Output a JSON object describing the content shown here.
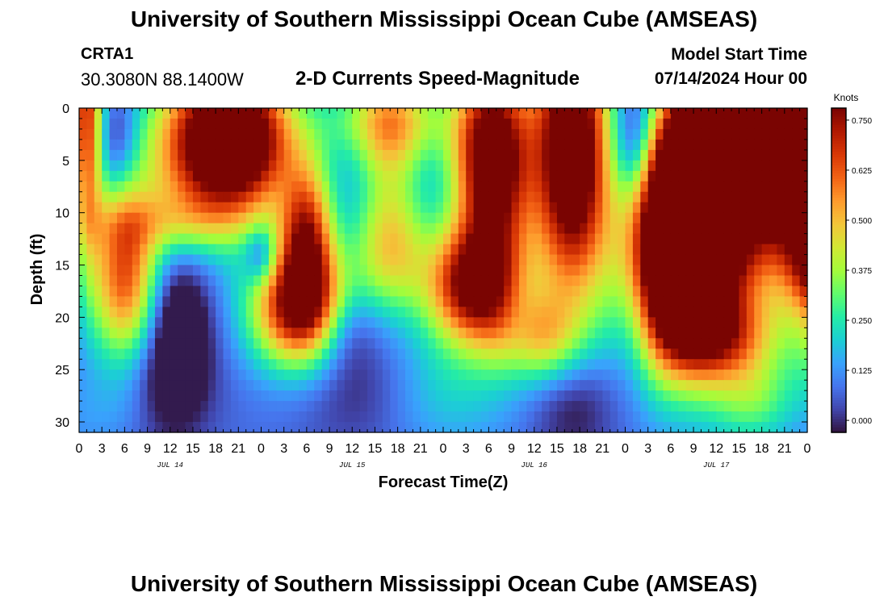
{
  "header": {
    "title": "University of Southern Mississippi Ocean Cube (AMSEAS)",
    "station": "CRTA1",
    "coords": "30.3080N  88.1400W",
    "subtitle": "2-D Currents Speed-Magnitude",
    "model_start_label": "Model Start Time",
    "model_start_value": "07/14/2024 Hour 00"
  },
  "footer": {
    "title": "University of Southern Mississippi Ocean Cube (AMSEAS)"
  },
  "colors": {
    "colormap": [
      "#30123b",
      "#4145ab",
      "#4675ed",
      "#39a2fc",
      "#1bcfd4",
      "#24eca6",
      "#61fc6c",
      "#a4fc3b",
      "#d1e834",
      "#f3c63a",
      "#fe9b2d",
      "#f36315",
      "#d93806",
      "#b11901",
      "#7a0402"
    ]
  },
  "chart_data": {
    "type": "heatmap",
    "title": "2-D Currents Speed-Magnitude",
    "xlabel": "Forecast Time(Z)",
    "ylabel": "Depth (ft)",
    "x_unit": "forecast hour",
    "xlim": [
      0,
      96
    ],
    "ylim": [
      31,
      0
    ],
    "x_ticks": [
      0,
      3,
      6,
      9,
      12,
      15,
      18,
      21,
      24,
      27,
      30,
      33,
      36,
      39,
      42,
      45,
      48,
      51,
      54,
      57,
      60,
      63,
      66,
      69,
      72,
      75,
      78,
      81,
      84,
      87,
      90,
      93,
      96
    ],
    "x_tick_labels": [
      "0",
      "3",
      "6",
      "9",
      "12",
      "15",
      "18",
      "21",
      "0",
      "3",
      "6",
      "9",
      "12",
      "15",
      "18",
      "21",
      "0",
      "3",
      "6",
      "9",
      "12",
      "15",
      "18",
      "21",
      "0",
      "3",
      "6",
      "9",
      "12",
      "15",
      "18",
      "21",
      "0"
    ],
    "day_labels": [
      {
        "hour": 12,
        "label": "JUL 14"
      },
      {
        "hour": 36,
        "label": "JUL 15"
      },
      {
        "hour": 60,
        "label": "JUL 16"
      },
      {
        "hour": 84,
        "label": "JUL 17"
      }
    ],
    "y_ticks": [
      0,
      5,
      10,
      15,
      20,
      25,
      30
    ],
    "y_tick_labels": [
      "0",
      "5",
      "10",
      "15",
      "20",
      "25",
      "30"
    ],
    "colorbar": {
      "unit": "Knots",
      "range": [
        -0.03,
        0.78
      ],
      "ticks": [
        0.0,
        0.125,
        0.25,
        0.375,
        0.5,
        0.625,
        0.75
      ],
      "tick_labels": [
        "0.000",
        "0.125",
        "0.250",
        "0.375",
        "0.500",
        "0.625",
        "0.750"
      ]
    },
    "grid": false,
    "baseline": 0.08,
    "features": [
      {
        "t": 1,
        "d": 0,
        "a": 0.6,
        "st": 1.5,
        "sd": 9
      },
      {
        "t": 21,
        "d": 3,
        "a": 0.9,
        "st": 5,
        "sd": 5
      },
      {
        "t": 14,
        "d": 4,
        "a": 0.35,
        "st": 5,
        "sd": 6
      },
      {
        "t": 6,
        "d": 16,
        "a": 0.55,
        "st": 3.2,
        "sd": 6
      },
      {
        "t": 29,
        "d": 19,
        "a": 0.7,
        "st": 4.5,
        "sd": 4
      },
      {
        "t": 30,
        "d": 12,
        "a": 0.55,
        "st": 2.5,
        "sd": 5
      },
      {
        "t": 41,
        "d": 5,
        "a": 0.25,
        "st": 3,
        "sd": 6
      },
      {
        "t": 52,
        "d": 5,
        "a": 0.15,
        "st": 3,
        "sd": 6
      },
      {
        "t": 41,
        "d": 1,
        "a": 0.3,
        "st": 6,
        "sd": 3
      },
      {
        "t": 12,
        "d": 11,
        "a": 0.15,
        "st": 8,
        "sd": 2
      },
      {
        "t": 41,
        "d": 14,
        "a": 0.3,
        "st": 3.5,
        "sd": 4
      },
      {
        "t": 55,
        "d": 5,
        "a": 0.75,
        "st": 3.5,
        "sd": 7
      },
      {
        "t": 52,
        "d": 17,
        "a": 0.7,
        "st": 4.5,
        "sd": 4
      },
      {
        "t": 65,
        "d": 4,
        "a": 0.9,
        "st": 3.5,
        "sd": 10
      },
      {
        "t": 60,
        "d": 22,
        "a": 0.35,
        "st": 4,
        "sd": 3
      },
      {
        "t": 79,
        "d": 8,
        "a": 0.6,
        "st": 2.5,
        "sd": 6
      },
      {
        "t": 87,
        "d": 4,
        "a": 0.95,
        "st": 6,
        "sd": 9
      },
      {
        "t": 79,
        "d": 15,
        "a": 1.0,
        "st": 5,
        "sd": 7
      },
      {
        "t": 85,
        "d": 22,
        "a": 0.35,
        "st": 5,
        "sd": 3
      },
      {
        "t": 96,
        "d": 3,
        "a": 0.7,
        "st": 3.5,
        "sd": 8
      },
      {
        "t": 98,
        "d": 16,
        "a": 0.6,
        "st": 3,
        "sd": 6
      },
      {
        "t": 89,
        "d": 28,
        "a": 0.2,
        "st": 4,
        "sd": 3
      },
      {
        "t": 46,
        "d": 27,
        "a": 0.15,
        "st": 8,
        "sd": 4
      },
      {
        "t": 6,
        "d": 29,
        "a": 0.1,
        "st": 6,
        "sd": 3
      },
      {
        "t": 5,
        "d": 3,
        "a": -0.15,
        "st": 2,
        "sd": 3
      },
      {
        "t": 13,
        "d": 21,
        "a": -0.25,
        "st": 3,
        "sd": 5
      },
      {
        "t": 10,
        "d": 28,
        "a": -0.15,
        "st": 5,
        "sd": 4
      },
      {
        "t": 24,
        "d": 14,
        "a": -0.2,
        "st": 1.5,
        "sd": 2
      },
      {
        "t": 35,
        "d": 21,
        "a": -0.15,
        "st": 3,
        "sd": 3
      },
      {
        "t": 38,
        "d": 27,
        "a": -0.15,
        "st": 6,
        "sd": 4
      },
      {
        "t": 58,
        "d": 21,
        "a": -0.1,
        "st": 2,
        "sd": 3
      },
      {
        "t": 65,
        "d": 28,
        "a": -0.15,
        "st": 4,
        "sd": 4
      },
      {
        "t": 73,
        "d": 3,
        "a": -0.2,
        "st": 2,
        "sd": 4
      },
      {
        "t": 73,
        "d": 20,
        "a": -0.1,
        "st": 2,
        "sd": 5
      },
      {
        "t": 96,
        "d": 20,
        "a": -0.1,
        "st": 2,
        "sd": 3
      }
    ]
  }
}
